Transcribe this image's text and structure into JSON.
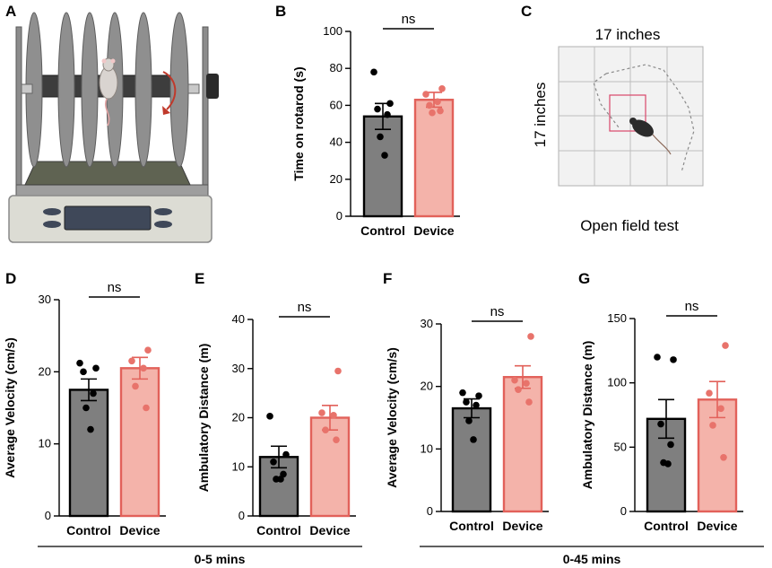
{
  "panel_labels": [
    "A",
    "B",
    "C",
    "D",
    "E",
    "F",
    "G"
  ],
  "open_field": {
    "width_label": "17 inches",
    "height_label": "17 inches",
    "caption": "Open field test"
  },
  "group_labels": {
    "short": "0-5 mins",
    "long": "0-45 mins"
  },
  "colors": {
    "control_fill": "#7f7f7f",
    "control_stroke": "#000000",
    "device_fill": "#f4b3aa",
    "device_stroke": "#e2615a",
    "device_dot": "#e8736b",
    "arena_fill": "#f2f2f2",
    "arena_grid": "#bdbdbd",
    "zone": "#d9476b"
  },
  "chart_data": [
    {
      "id": "B",
      "type": "bar",
      "title": "",
      "categories": [
        "Control",
        "Device"
      ],
      "ylabel": "Time on rotarod (s)",
      "ylim": [
        0,
        100
      ],
      "yticks": [
        0,
        20,
        40,
        60,
        80,
        100
      ],
      "means": [
        54,
        63
      ],
      "sem": [
        7,
        4
      ],
      "points": [
        [
          78,
          61,
          58,
          55,
          43,
          33
        ],
        [
          69,
          66,
          62,
          60,
          57,
          56
        ]
      ],
      "annotation": "ns"
    },
    {
      "id": "D",
      "type": "bar",
      "title": "",
      "categories": [
        "Control",
        "Device"
      ],
      "ylabel": "Average Velocity (cm/s)",
      "ylim": [
        0,
        30
      ],
      "yticks": [
        0,
        10,
        20,
        30
      ],
      "means": [
        17.5,
        20.5
      ],
      "sem": [
        1.5,
        1.5
      ],
      "points": [
        [
          21.2,
          20.5,
          20.0,
          17.0,
          15.0,
          12.0
        ],
        [
          23.0,
          21.5,
          20.5,
          18.0,
          15.0
        ]
      ],
      "annotation": "ns"
    },
    {
      "id": "E",
      "type": "bar",
      "title": "",
      "categories": [
        "Control",
        "Device"
      ],
      "ylabel": "Ambulatory Distance (m)",
      "ylim": [
        0,
        40
      ],
      "yticks": [
        0,
        10,
        20,
        30,
        40
      ],
      "means": [
        12,
        20
      ],
      "sem": [
        2.2,
        2.5
      ],
      "points": [
        [
          20.3,
          12.5,
          11.0,
          8.5,
          7.5,
          7.5
        ],
        [
          29.5,
          21.0,
          20.5,
          17.5,
          15.5
        ]
      ],
      "annotation": "ns"
    },
    {
      "id": "F",
      "type": "bar",
      "title": "",
      "categories": [
        "Control",
        "Device"
      ],
      "ylabel": "Average Velocity (cm/s)",
      "ylim": [
        0,
        30
      ],
      "yticks": [
        0,
        10,
        20,
        30
      ],
      "means": [
        16.5,
        21.5
      ],
      "sem": [
        1.5,
        1.8
      ],
      "points": [
        [
          19.0,
          18.5,
          17.5,
          17.0,
          14.5,
          11.5
        ],
        [
          28.0,
          21.0,
          20.5,
          19.5,
          17.5
        ]
      ],
      "annotation": "ns"
    },
    {
      "id": "G",
      "type": "bar",
      "title": "",
      "categories": [
        "Control",
        "Device"
      ],
      "ylabel": "Ambulatory Distance (m)",
      "ylim": [
        0,
        150
      ],
      "yticks": [
        0,
        50,
        100,
        150
      ],
      "means": [
        72,
        87
      ],
      "sem": [
        15,
        14
      ],
      "points": [
        [
          120,
          118,
          68,
          52,
          38,
          37
        ],
        [
          129,
          92,
          80,
          67,
          42
        ]
      ],
      "annotation": "ns"
    }
  ]
}
